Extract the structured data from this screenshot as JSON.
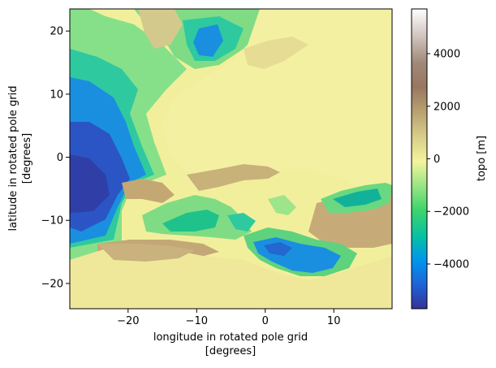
{
  "chart_data": {
    "type": "heatmap",
    "title": "",
    "xlabel": [
      "longitude in rotated pole grid",
      "[degrees]"
    ],
    "ylabel": [
      "latitude in rotated pole grid",
      "[degrees]"
    ],
    "xlim": [
      -28.5,
      18.5
    ],
    "ylim": [
      -24,
      23.5
    ],
    "xticks": [
      -20,
      -10,
      0,
      10
    ],
    "yticks": [
      -20,
      -10,
      0,
      10,
      20
    ],
    "xtick_labels": [
      "−20",
      "−10",
      "0",
      "10"
    ],
    "ytick_labels": [
      "−20",
      "−10",
      "0",
      "10",
      "20"
    ],
    "colorbar": {
      "label": "topo [m]",
      "range": [
        -5700,
        5700
      ],
      "ticks": [
        -4000,
        -2000,
        0,
        2000,
        4000
      ],
      "tick_labels": [
        "−4000",
        "−2000",
        "0",
        "2000",
        "4000"
      ],
      "colormap": "terrain"
    },
    "grid": false,
    "description_variable": "topo",
    "units": "m"
  }
}
